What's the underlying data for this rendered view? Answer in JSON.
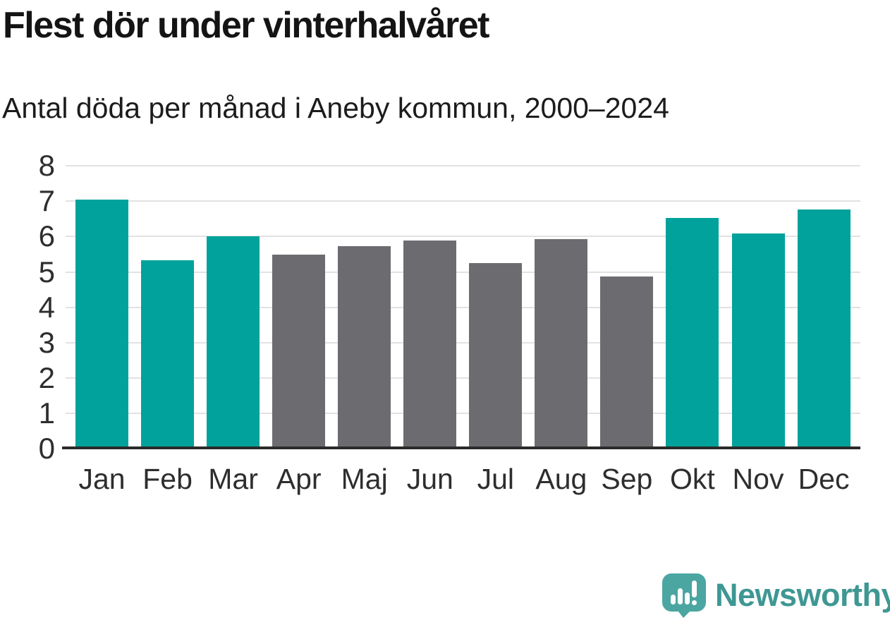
{
  "header": {
    "title": "Flest dör under vinterhalvåret",
    "subtitle": "Antal döda per månad i Aneby kommun, 2000–2024"
  },
  "chart_data": {
    "type": "bar",
    "title": "Flest dör under vinterhalvåret",
    "subtitle": "Antal döda per månad i Aneby kommun, 2000–2024",
    "categories": [
      "Jan",
      "Feb",
      "Mar",
      "Apr",
      "Maj",
      "Jun",
      "Jul",
      "Aug",
      "Sep",
      "Okt",
      "Nov",
      "Dec"
    ],
    "values": [
      7.05,
      5.33,
      6.0,
      5.48,
      5.72,
      5.88,
      5.25,
      5.93,
      4.88,
      6.53,
      6.08,
      6.77
    ],
    "bar_colors": [
      "#00A29B",
      "#00A29B",
      "#00A29B",
      "#6C6C70",
      "#6C6C70",
      "#6C6C70",
      "#6C6C70",
      "#6C6C70",
      "#6C6C70",
      "#00A29B",
      "#00A29B",
      "#00A29B"
    ],
    "xlabel": "",
    "ylabel": "",
    "ylim": [
      0,
      8
    ],
    "yticks": [
      0,
      1,
      2,
      3,
      4,
      5,
      6,
      7,
      8
    ],
    "grid": true,
    "legend": false,
    "palette": {
      "winter_months": "#00A29B",
      "summer_months": "#6C6C70"
    }
  },
  "colors": {
    "grid": "#E2E2E2",
    "axis": "#2B2B2B",
    "tick_text": "#2E2E2E",
    "title_text": "#141414"
  },
  "branding": {
    "wordmark": "Newsworthy",
    "wordmark_color": "#3E9793",
    "icon": "newsworthy-speech-bubble-chart-icon",
    "icon_color": "#4BA6A2"
  }
}
